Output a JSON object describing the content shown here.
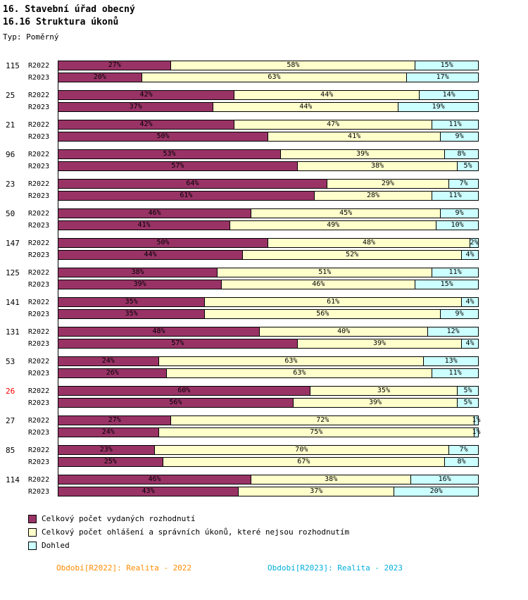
{
  "header": {
    "title": "16. Stavební úřad obecný",
    "subtitle": "16.16 Struktura úkonů",
    "type_label": "Typ: Poměrný"
  },
  "chart_data": {
    "type": "bar",
    "orientation": "horizontal",
    "stacked": true,
    "unit": "%",
    "xlim": [
      0,
      100
    ],
    "series_labels": [
      "R2022",
      "R2023"
    ],
    "legend": [
      {
        "label": "Celkový počet vydaných rozhodnutí",
        "color": "#993366"
      },
      {
        "label": "Celkový počet ohlášení a správních úkonů, které nejsou rozhodnutím",
        "color": "#FFFFCC"
      },
      {
        "label": "Dohled",
        "color": "#CCFFFF"
      }
    ],
    "groups": [
      {
        "label": "115",
        "label_color": "#000000",
        "rows": [
          {
            "name": "R2022",
            "values": [
              27,
              58,
              15
            ]
          },
          {
            "name": "R2023",
            "values": [
              20,
              63,
              17
            ]
          }
        ]
      },
      {
        "label": "25",
        "label_color": "#000000",
        "rows": [
          {
            "name": "R2022",
            "values": [
              42,
              44,
              14
            ]
          },
          {
            "name": "R2023",
            "values": [
              37,
              44,
              19
            ]
          }
        ]
      },
      {
        "label": "21",
        "label_color": "#000000",
        "rows": [
          {
            "name": "R2022",
            "values": [
              42,
              47,
              11
            ]
          },
          {
            "name": "R2023",
            "values": [
              50,
              41,
              9
            ]
          }
        ]
      },
      {
        "label": "96",
        "label_color": "#000000",
        "rows": [
          {
            "name": "R2022",
            "values": [
              53,
              39,
              8
            ]
          },
          {
            "name": "R2023",
            "values": [
              57,
              38,
              5
            ]
          }
        ]
      },
      {
        "label": "23",
        "label_color": "#000000",
        "rows": [
          {
            "name": "R2022",
            "values": [
              64,
              29,
              7
            ]
          },
          {
            "name": "R2023",
            "values": [
              61,
              28,
              11
            ]
          }
        ]
      },
      {
        "label": "50",
        "label_color": "#000000",
        "rows": [
          {
            "name": "R2022",
            "values": [
              46,
              45,
              9
            ]
          },
          {
            "name": "R2023",
            "values": [
              41,
              49,
              10
            ]
          }
        ]
      },
      {
        "label": "147",
        "label_color": "#000000",
        "rows": [
          {
            "name": "R2022",
            "values": [
              50,
              48,
              2
            ]
          },
          {
            "name": "R2023",
            "values": [
              44,
              52,
              4
            ]
          }
        ]
      },
      {
        "label": "125",
        "label_color": "#000000",
        "rows": [
          {
            "name": "R2022",
            "values": [
              38,
              51,
              11
            ]
          },
          {
            "name": "R2023",
            "values": [
              39,
              46,
              15
            ]
          }
        ]
      },
      {
        "label": "141",
        "label_color": "#000000",
        "rows": [
          {
            "name": "R2022",
            "values": [
              35,
              61,
              4
            ]
          },
          {
            "name": "R2023",
            "values": [
              35,
              56,
              9
            ]
          }
        ]
      },
      {
        "label": "131",
        "label_color": "#000000",
        "rows": [
          {
            "name": "R2022",
            "values": [
              48,
              40,
              12
            ]
          },
          {
            "name": "R2023",
            "values": [
              57,
              39,
              4
            ]
          }
        ]
      },
      {
        "label": "53",
        "label_color": "#000000",
        "rows": [
          {
            "name": "R2022",
            "values": [
              24,
              63,
              13
            ]
          },
          {
            "name": "R2023",
            "values": [
              26,
              63,
              11
            ]
          }
        ]
      },
      {
        "label": "26",
        "label_color": "#FF0000",
        "rows": [
          {
            "name": "R2022",
            "values": [
              60,
              35,
              5
            ]
          },
          {
            "name": "R2023",
            "values": [
              56,
              39,
              5
            ]
          }
        ]
      },
      {
        "label": "27",
        "label_color": "#000000",
        "rows": [
          {
            "name": "R2022",
            "values": [
              27,
              72,
              1
            ]
          },
          {
            "name": "R2023",
            "values": [
              24,
              75,
              1
            ]
          }
        ]
      },
      {
        "label": "85",
        "label_color": "#000000",
        "rows": [
          {
            "name": "R2022",
            "values": [
              23,
              70,
              7
            ]
          },
          {
            "name": "R2023",
            "values": [
              25,
              67,
              8
            ]
          }
        ]
      },
      {
        "label": "114",
        "label_color": "#000000",
        "rows": [
          {
            "name": "R2022",
            "values": [
              46,
              38,
              16
            ]
          },
          {
            "name": "R2023",
            "values": [
              43,
              37,
              20
            ]
          }
        ]
      }
    ]
  },
  "footer": {
    "left": "Období[R2022]: Realita - 2022",
    "left_color": "#FF8C00",
    "right": "Období[R2023]: Realita - 2023",
    "right_color": "#00AEDC"
  }
}
